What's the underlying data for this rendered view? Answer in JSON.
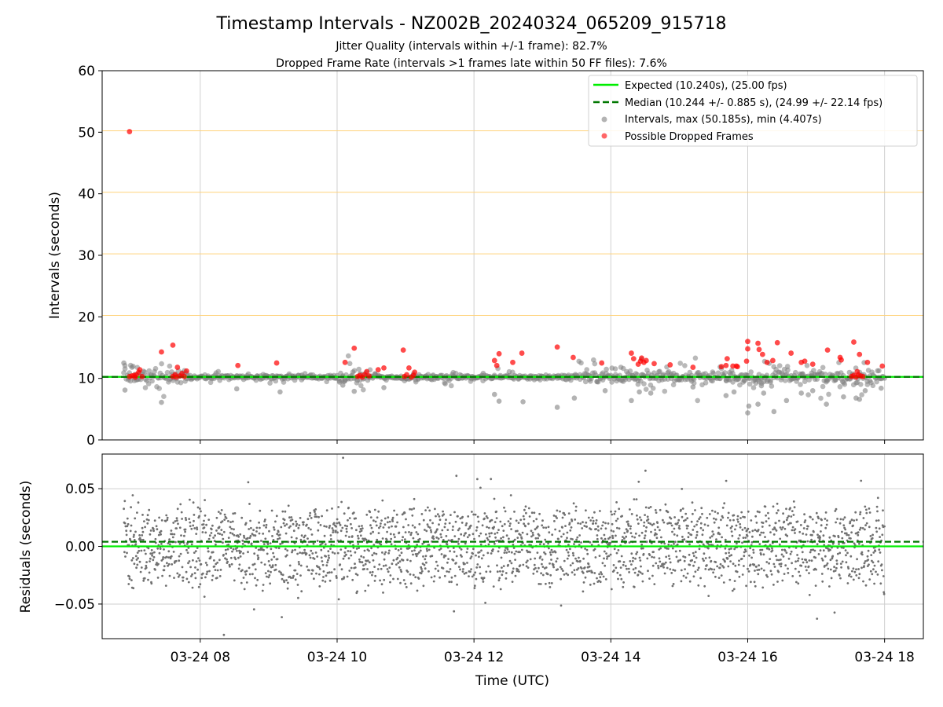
{
  "title": "Timestamp Intervals - NZ002B_20240324_065209_915718",
  "subtitle_1": "Jitter Quality (intervals within +/-1 frame): 82.7%",
  "subtitle_2": "Dropped Frame Rate (intervals >1 frames late within 50 FF files): 7.6%",
  "colors": {
    "expected": "#00ee00",
    "median": "#007700",
    "intervals": "#808080",
    "dropped": "#ff0000",
    "threshold": "#ffd27a",
    "grid": "#cfcfcf"
  },
  "chart_data": [
    {
      "type": "scatter",
      "ylabel": "Intervals (seconds)",
      "ylim": [
        0,
        60
      ],
      "yticks": [
        "0",
        "10",
        "20",
        "30",
        "40",
        "50",
        "60"
      ],
      "xlim": [
        "2024-03-24 06:34",
        "2024-03-24 18:34"
      ],
      "grid": "x",
      "threshold_lines": [
        10.24,
        20.24,
        30.24,
        40.24,
        50.24
      ],
      "legend_position": "upper right",
      "legend": [
        "Expected (10.240s), (25.00 fps)",
        "Median (10.244 +/- 0.885 s), (24.99 +/- 22.14 fps)",
        "Intervals, max (50.185s), min (4.407s)",
        "Possible Dropped Frames"
      ],
      "expected_y": 10.24,
      "median_y": 10.244,
      "dropped_frames": [
        [
          "2024-03-24 06:58",
          10.3
        ],
        [
          "2024-03-24 07:00",
          10.4
        ],
        [
          "2024-03-24 07:02",
          10.5
        ],
        [
          "2024-03-24 07:03",
          10.2
        ],
        [
          "2024-03-24 07:04",
          10.6
        ],
        [
          "2024-03-24 07:06",
          11.0
        ],
        [
          "2024-03-24 07:07",
          11.4
        ],
        [
          "2024-03-24 07:09",
          10.3
        ],
        [
          "2024-03-24 06:58",
          50.1
        ],
        [
          "2024-03-24 07:26",
          14.3
        ],
        [
          "2024-03-24 07:36",
          15.4
        ],
        [
          "2024-03-24 07:36",
          10.3
        ],
        [
          "2024-03-24 07:38",
          10.6
        ],
        [
          "2024-03-24 07:39",
          10.2
        ],
        [
          "2024-03-24 07:40",
          11.8
        ],
        [
          "2024-03-24 07:42",
          10.4
        ],
        [
          "2024-03-24 07:44",
          10.8
        ],
        [
          "2024-03-24 07:46",
          10.3
        ],
        [
          "2024-03-24 07:48",
          11.2
        ],
        [
          "2024-03-24 08:33",
          12.1
        ],
        [
          "2024-03-24 09:07",
          12.5
        ],
        [
          "2024-03-24 10:07",
          12.6
        ],
        [
          "2024-03-24 10:15",
          14.9
        ],
        [
          "2024-03-24 10:18",
          10.3
        ],
        [
          "2024-03-24 10:20",
          10.5
        ],
        [
          "2024-03-24 10:22",
          10.2
        ],
        [
          "2024-03-24 10:24",
          10.6
        ],
        [
          "2024-03-24 10:26",
          11.1
        ],
        [
          "2024-03-24 10:28",
          10.4
        ],
        [
          "2024-03-24 10:36",
          11.4
        ],
        [
          "2024-03-24 10:41",
          11.7
        ],
        [
          "2024-03-24 10:58",
          14.6
        ],
        [
          "2024-03-24 10:59",
          10.3
        ],
        [
          "2024-03-24 11:01",
          10.6
        ],
        [
          "2024-03-24 11:03",
          11.7
        ],
        [
          "2024-03-24 11:05",
          10.2
        ],
        [
          "2024-03-24 11:07",
          10.5
        ],
        [
          "2024-03-24 11:08",
          11.0
        ],
        [
          "2024-03-24 12:18",
          12.9
        ],
        [
          "2024-03-24 12:22",
          14.0
        ],
        [
          "2024-03-24 12:20",
          12.1
        ],
        [
          "2024-03-24 12:34",
          12.6
        ],
        [
          "2024-03-24 12:42",
          14.1
        ],
        [
          "2024-03-24 13:13",
          15.1
        ],
        [
          "2024-03-24 13:27",
          13.4
        ],
        [
          "2024-03-24 13:52",
          12.5
        ],
        [
          "2024-03-24 14:18",
          14.1
        ],
        [
          "2024-03-24 14:20",
          13.2
        ],
        [
          "2024-03-24 14:24",
          12.3
        ],
        [
          "2024-03-24 14:26",
          12.8
        ],
        [
          "2024-03-24 14:27",
          13.3
        ],
        [
          "2024-03-24 14:29",
          12.6
        ],
        [
          "2024-03-24 14:31",
          12.9
        ],
        [
          "2024-03-24 14:38",
          12.4
        ],
        [
          "2024-03-24 14:52",
          12.2
        ],
        [
          "2024-03-24 15:12",
          11.8
        ],
        [
          "2024-03-24 15:37",
          11.9
        ],
        [
          "2024-03-24 15:41",
          12.1
        ],
        [
          "2024-03-24 15:47",
          12.0
        ],
        [
          "2024-03-24 15:51",
          11.9
        ],
        [
          "2024-03-24 15:42",
          13.2
        ],
        [
          "2024-03-24 15:50",
          12.0
        ],
        [
          "2024-03-24 16:00",
          16.0
        ],
        [
          "2024-03-24 16:00",
          14.8
        ],
        [
          "2024-03-24 15:59",
          12.8
        ],
        [
          "2024-03-24 16:09",
          15.7
        ],
        [
          "2024-03-24 16:10",
          14.7
        ],
        [
          "2024-03-24 16:13",
          13.9
        ],
        [
          "2024-03-24 16:17",
          12.6
        ],
        [
          "2024-03-24 16:22",
          12.9
        ],
        [
          "2024-03-24 16:26",
          15.8
        ],
        [
          "2024-03-24 16:38",
          14.1
        ],
        [
          "2024-03-24 16:47",
          12.6
        ],
        [
          "2024-03-24 16:50",
          12.8
        ],
        [
          "2024-03-24 16:57",
          12.3
        ],
        [
          "2024-03-24 17:10",
          14.6
        ],
        [
          "2024-03-24 17:21",
          13.4
        ],
        [
          "2024-03-24 17:22",
          13.0
        ],
        [
          "2024-03-24 17:33",
          15.9
        ],
        [
          "2024-03-24 17:38",
          13.9
        ],
        [
          "2024-03-24 17:36",
          11.1
        ],
        [
          "2024-03-24 17:45",
          12.6
        ],
        [
          "2024-03-24 17:58",
          12.0
        ],
        [
          "2024-03-24 17:31",
          10.3
        ],
        [
          "2024-03-24 17:33",
          10.5
        ],
        [
          "2024-03-24 17:35",
          10.2
        ],
        [
          "2024-03-24 17:37",
          10.6
        ],
        [
          "2024-03-24 17:39",
          10.4
        ],
        [
          "2024-03-24 17:41",
          10.3
        ]
      ],
      "interval_outliers": [
        [
          "2024-03-24 06:53",
          12.5
        ],
        [
          "2024-03-24 06:54",
          8.1
        ],
        [
          "2024-03-24 07:26",
          6.1
        ],
        [
          "2024-03-24 08:32",
          8.3
        ],
        [
          "2024-03-24 09:10",
          7.8
        ],
        [
          "2024-03-24 10:05",
          8.9
        ],
        [
          "2024-03-24 10:15",
          7.9
        ],
        [
          "2024-03-24 10:41",
          8.5
        ],
        [
          "2024-03-24 12:18",
          7.4
        ],
        [
          "2024-03-24 12:22",
          6.3
        ],
        [
          "2024-03-24 12:43",
          6.2
        ],
        [
          "2024-03-24 13:13",
          5.3
        ],
        [
          "2024-03-24 13:28",
          6.8
        ],
        [
          "2024-03-24 13:55",
          8.0
        ],
        [
          "2024-03-24 14:18",
          6.4
        ],
        [
          "2024-03-24 14:25",
          7.8
        ],
        [
          "2024-03-24 14:35",
          7.6
        ],
        [
          "2024-03-24 15:12",
          8.6
        ],
        [
          "2024-03-24 15:41",
          7.2
        ],
        [
          "2024-03-24 15:48",
          7.8
        ],
        [
          "2024-03-24 16:00",
          4.4
        ],
        [
          "2024-03-24 16:01",
          5.5
        ],
        [
          "2024-03-24 16:09",
          5.8
        ],
        [
          "2024-03-24 16:12",
          8.8
        ],
        [
          "2024-03-24 16:14",
          7.6
        ],
        [
          "2024-03-24 16:23",
          4.6
        ],
        [
          "2024-03-24 16:34",
          6.4
        ],
        [
          "2024-03-24 16:47",
          7.6
        ],
        [
          "2024-03-24 16:57",
          8.0
        ],
        [
          "2024-03-24 17:09",
          5.8
        ],
        [
          "2024-03-24 17:24",
          7.0
        ],
        [
          "2024-03-24 17:35",
          6.8
        ],
        [
          "2024-03-24 17:38",
          6.6
        ],
        [
          "2024-03-24 17:43",
          8.0
        ],
        [
          "2024-03-24 17:57",
          8.4
        ]
      ],
      "interval_band": {
        "center": 10.2,
        "spread_normal": 0.5,
        "spread_dense": 1.6
      }
    },
    {
      "type": "scatter",
      "ylabel": "Residuals (seconds)",
      "xlabel": "Time (UTC)",
      "ylim": [
        -0.08,
        0.08
      ],
      "yticks": [
        "−0.05",
        "0.00",
        "0.05"
      ],
      "xticks": [
        "03-24 08",
        "03-24 10",
        "03-24 12",
        "03-24 14",
        "03-24 16",
        "03-24 18"
      ],
      "grid": "both",
      "expected_y": 0.0,
      "median_y": 0.004,
      "residual_bands": [
        0.02,
        0.0,
        -0.02
      ],
      "residual_spread": 0.015
    }
  ]
}
